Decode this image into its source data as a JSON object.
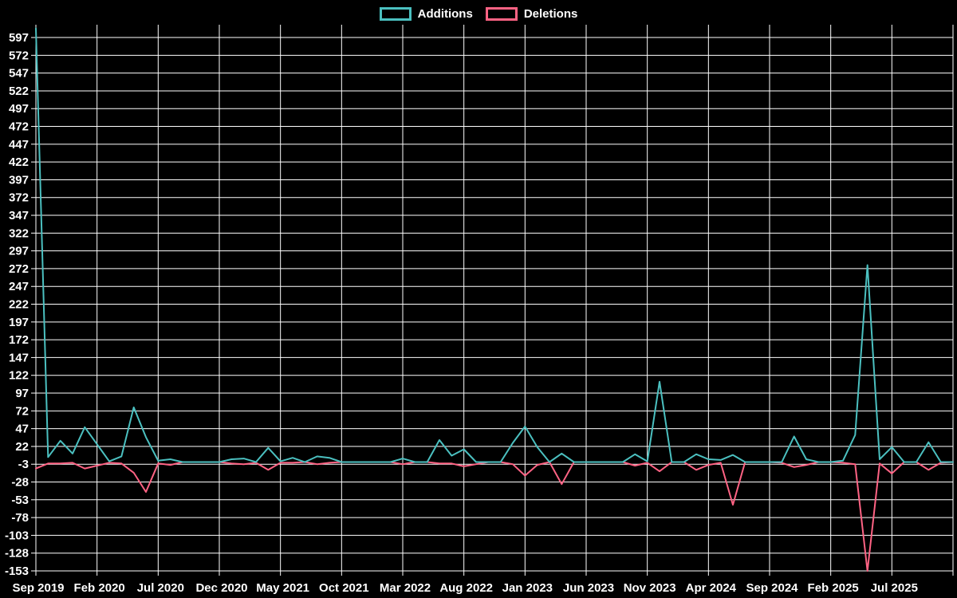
{
  "page": {
    "background": "#000000",
    "text_color": "#ffffff"
  },
  "legend": {
    "items": [
      {
        "label": "Additions",
        "color": "#4bc0c0"
      },
      {
        "label": "Deletions",
        "color": "#ff6384"
      }
    ]
  },
  "chart_data": {
    "type": "line",
    "title": "",
    "xlabel": "",
    "ylabel": "",
    "background": "#000000",
    "grid": true,
    "grid_color": "#ffffff",
    "text_color": "#ffffff",
    "legend_position": "top",
    "y_axis": {
      "min": -153,
      "max": 597,
      "tick_step": 25
    },
    "x_axis_tick_labels": [
      "Sep 2019",
      "Feb 2020",
      "Jul 2020",
      "Dec 2020",
      "May 2021",
      "Oct 2021",
      "Mar 2022",
      "Aug 2022",
      "Jan 2023",
      "Jun 2023",
      "Nov 2023",
      "Apr 2024",
      "Sep 2024",
      "Feb 2025",
      "Jul 2025"
    ],
    "x_tick_every_n_points": 5,
    "x": [
      "Sep 2019",
      "Oct 2019",
      "Nov 2019",
      "Dec 2019",
      "Jan 2020",
      "Feb 2020",
      "Mar 2020",
      "Apr 2020",
      "May 2020",
      "Jun 2020",
      "Jul 2020",
      "Aug 2020",
      "Sep 2020",
      "Oct 2020",
      "Nov 2020",
      "Dec 2020",
      "Jan 2021",
      "Feb 2021",
      "Mar 2021",
      "Apr 2021",
      "May 2021",
      "Jun 2021",
      "Jul 2021",
      "Aug 2021",
      "Sep 2021",
      "Oct 2021",
      "Nov 2021",
      "Dec 2021",
      "Jan 2022",
      "Feb 2022",
      "Mar 2022",
      "Apr 2022",
      "May 2022",
      "Jun 2022",
      "Jul 2022",
      "Aug 2022",
      "Sep 2022",
      "Oct 2022",
      "Nov 2022",
      "Dec 2022",
      "Jan 2023",
      "Feb 2023",
      "Mar 2023",
      "Apr 2023",
      "May 2023",
      "Jun 2023",
      "Jul 2023",
      "Aug 2023",
      "Sep 2023",
      "Oct 2023",
      "Nov 2023",
      "Dec 2023",
      "Jan 2024",
      "Feb 2024",
      "Mar 2024",
      "Apr 2024",
      "May 2024",
      "Jun 2024",
      "Jul 2024",
      "Aug 2024",
      "Sep 2024",
      "Oct 2024",
      "Nov 2024",
      "Dec 2024",
      "Jan 2025",
      "Feb 2025",
      "Mar 2025",
      "Apr 2025",
      "May 2025",
      "Jun 2025",
      "Jul 2025",
      "Aug 2025",
      "Sep 2025",
      "Oct 2025",
      "Nov 2025",
      "Dec 2025"
    ],
    "series": [
      {
        "name": "Additions",
        "color": "#4bc0c0",
        "values": [
          610,
          7,
          30,
          12,
          49,
          25,
          1,
          8,
          77,
          35,
          2,
          4,
          0,
          0,
          0,
          0,
          4,
          5,
          0,
          20,
          1,
          6,
          0,
          8,
          6,
          0,
          0,
          0,
          0,
          0,
          5,
          0,
          0,
          31,
          9,
          18,
          0,
          0,
          0,
          27,
          50,
          21,
          0,
          12,
          0,
          0,
          0,
          0,
          0,
          11,
          1,
          113,
          0,
          0,
          11,
          4,
          3,
          10,
          0,
          0,
          0,
          0,
          36,
          4,
          0,
          0,
          2,
          38,
          277,
          4,
          21,
          0,
          0,
          28,
          0,
          0
        ]
      },
      {
        "name": "Deletions",
        "color": "#ff6384",
        "values": [
          -9,
          -2,
          -2,
          -1,
          -9,
          -5,
          -1,
          -2,
          -15,
          -42,
          -2,
          -4,
          0,
          0,
          0,
          0,
          -2,
          -3,
          -1,
          -11,
          -1,
          -1,
          0,
          -3,
          -1,
          0,
          0,
          0,
          0,
          0,
          -3,
          0,
          0,
          -2,
          -2,
          -6,
          -3,
          0,
          0,
          -3,
          -19,
          -4,
          0,
          -31,
          0,
          0,
          0,
          0,
          0,
          -5,
          -1,
          -13,
          0,
          0,
          -11,
          -4,
          -1,
          -60,
          0,
          0,
          0,
          -1,
          -7,
          -4,
          0,
          0,
          -1,
          -3,
          -153,
          -2,
          -16,
          0,
          0,
          -11,
          -1,
          0
        ]
      }
    ]
  }
}
